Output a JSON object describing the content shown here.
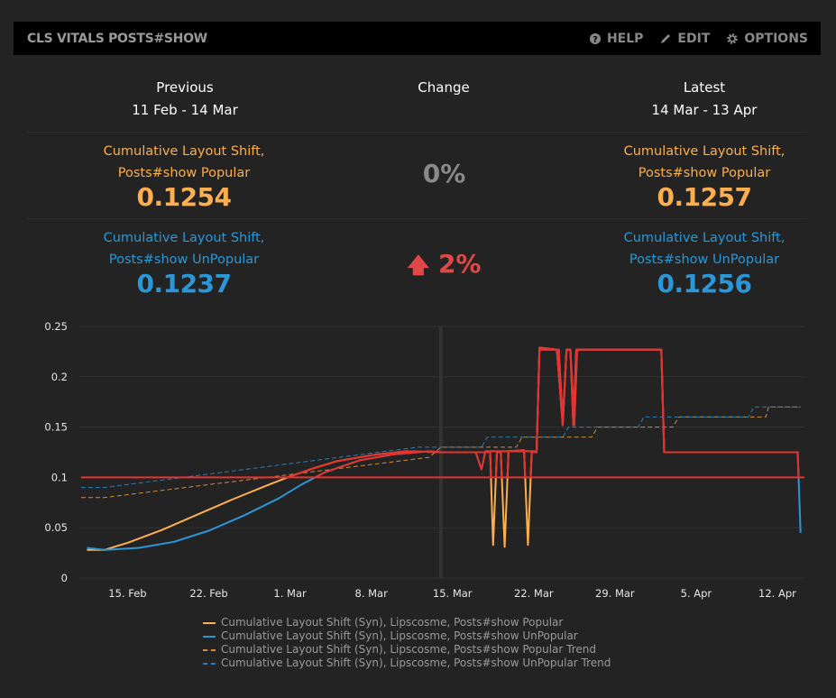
{
  "header": {
    "title": "CLS VITALS POSTS#SHOW",
    "actions": [
      {
        "label": "HELP",
        "icon": "help-circle-icon"
      },
      {
        "label": "EDIT",
        "icon": "pencil-icon"
      },
      {
        "label": "OPTIONS",
        "icon": "gear-icon"
      }
    ]
  },
  "summary": {
    "previous": {
      "heading": "Previous",
      "range": "11 Feb - 14 Mar"
    },
    "change": {
      "heading": "Change"
    },
    "latest": {
      "heading": "Latest",
      "range": "14 Mar - 13 Apr"
    },
    "rows": [
      {
        "label1": "Cumulative Layout Shift,",
        "label2": "Posts#show Popular",
        "previous": "0.1254",
        "latest": "0.1257",
        "change": "0%",
        "change_color": "#8a8a8a",
        "color": "#fdae4d"
      },
      {
        "label1": "Cumulative Layout Shift,",
        "label2": "Posts#show UnPopular",
        "previous": "0.1237",
        "latest": "0.1256",
        "change": "2%",
        "change_direction": "up",
        "change_color": "#e04848",
        "color": "#2a97d8"
      }
    ]
  },
  "chart_data": {
    "type": "line",
    "ylim": [
      0,
      0.25
    ],
    "yticks": [
      "0",
      "0.05",
      "0.1",
      "0.15",
      "0.2",
      "0.25"
    ],
    "xticks": [
      "15. Feb",
      "22. Feb",
      "1. Mar",
      "8. Mar",
      "15. Mar",
      "22. Mar",
      "29. Mar",
      "5. Apr",
      "12. Apr"
    ],
    "xtick_dates": [
      "02-15",
      "02-22",
      "03-01",
      "03-08",
      "03-15",
      "03-22",
      "03-29",
      "04-05",
      "04-12"
    ],
    "xlim": [
      "02-11",
      "04-14 08:00"
    ],
    "period_divider": "03-14",
    "threshold": 0.1,
    "threshold_color": "#e8322f",
    "grid": true,
    "legend_placement": "bottom",
    "series": [
      {
        "name": "Cumulative Layout Shift (Syn), Lipscosme, Posts#show Popular",
        "color": "#fdae4d",
        "dash": false,
        "points": [
          [
            "02-11 12:00",
            0.028
          ],
          [
            "02-13",
            0.028
          ],
          [
            "02-15",
            0.035
          ],
          [
            "02-18",
            0.048
          ],
          [
            "02-21",
            0.063
          ],
          [
            "02-24",
            0.078
          ],
          [
            "02-27",
            0.092
          ],
          [
            "03-01",
            0.101
          ],
          [
            "03-03",
            0.109
          ],
          [
            "03-05",
            0.116
          ],
          [
            "03-08",
            0.122
          ],
          [
            "03-11",
            0.126
          ],
          [
            "03-14",
            0.125
          ],
          [
            "03-18 06:00",
            0.125
          ],
          [
            "03-18 12:00",
            0.033
          ],
          [
            "03-18 20:00",
            0.125
          ],
          [
            "03-19 04:00",
            0.125
          ],
          [
            "03-19 12:00",
            0.031
          ],
          [
            "03-19 20:00",
            0.126
          ],
          [
            "03-21 04:00",
            0.127
          ],
          [
            "03-21 12:00",
            0.033
          ],
          [
            "03-21 20:00",
            0.125
          ],
          [
            "03-22 06:00",
            0.125
          ],
          [
            "03-22 12:00",
            0.229
          ],
          [
            "03-24",
            0.227
          ],
          [
            "03-24 12:00",
            0.152
          ],
          [
            "03-24 20:00",
            0.227
          ],
          [
            "03-25 04:00",
            0.227
          ],
          [
            "03-25 10:00",
            0.152
          ],
          [
            "03-25 16:00",
            0.227
          ],
          [
            "04-02",
            0.227
          ],
          [
            "04-02 06:00",
            0.125
          ],
          [
            "04-13 20:00",
            0.125
          ]
        ]
      },
      {
        "name": "Cumulative Layout Shift (Syn), Lipscosme, Posts#show UnPopular",
        "color": "#2a97d8",
        "dash": false,
        "points": [
          [
            "02-11 12:00",
            0.03
          ],
          [
            "02-13",
            0.028
          ],
          [
            "02-16",
            0.03
          ],
          [
            "02-19",
            0.036
          ],
          [
            "02-22",
            0.047
          ],
          [
            "02-25",
            0.062
          ],
          [
            "02-28",
            0.079
          ],
          [
            "03-02",
            0.093
          ],
          [
            "03-04",
            0.105
          ],
          [
            "03-07",
            0.117
          ],
          [
            "03-10",
            0.123
          ],
          [
            "03-13",
            0.126
          ],
          [
            "03-14",
            0.125
          ],
          [
            "03-17",
            0.125
          ],
          [
            "03-17 12:00",
            0.108
          ],
          [
            "03-17 20:00",
            0.126
          ],
          [
            "03-22 06:00",
            0.126
          ],
          [
            "03-22 12:00",
            0.227
          ],
          [
            "03-24 04:00",
            0.227
          ],
          [
            "03-24 12:00",
            0.155
          ],
          [
            "03-24 20:00",
            0.227
          ],
          [
            "03-25 04:00",
            0.227
          ],
          [
            "03-25 12:00",
            0.152
          ],
          [
            "03-25 18:00",
            0.227
          ],
          [
            "04-02",
            0.227
          ],
          [
            "04-02 06:00",
            0.125
          ],
          [
            "04-13 18:00",
            0.125
          ],
          [
            "04-14",
            0.045
          ]
        ]
      },
      {
        "name": "Cumulative Layout Shift (Syn), Lipscosme, Posts#show Popular Trend",
        "color": "#d08a3a",
        "dash": true,
        "points": [
          [
            "02-11",
            0.08
          ],
          [
            "02-13",
            0.08
          ],
          [
            "03-13",
            0.12
          ],
          [
            "03-14",
            0.13
          ],
          [
            "03-20 12:00",
            0.13
          ],
          [
            "03-21",
            0.14
          ],
          [
            "03-27",
            0.14
          ],
          [
            "03-27 12:00",
            0.15
          ],
          [
            "04-03",
            0.15
          ],
          [
            "04-03 12:00",
            0.16
          ],
          [
            "04-11",
            0.16
          ],
          [
            "04-11 06:00",
            0.17
          ],
          [
            "04-14",
            0.17
          ]
        ]
      },
      {
        "name": "Cumulative Layout Shift (Syn), Lipscosme, Posts#show UnPopular Trend",
        "color": "#2a7fb8",
        "dash": true,
        "points": [
          [
            "02-11",
            0.09
          ],
          [
            "02-13",
            0.09
          ],
          [
            "03-12",
            0.13
          ],
          [
            "03-17 12:00",
            0.13
          ],
          [
            "03-18",
            0.14
          ],
          [
            "03-24 12:00",
            0.14
          ],
          [
            "03-25",
            0.15
          ],
          [
            "03-31",
            0.15
          ],
          [
            "03-31 12:00",
            0.16
          ],
          [
            "04-09 12:00",
            0.16
          ],
          [
            "04-10",
            0.17
          ],
          [
            "04-14",
            0.17
          ]
        ]
      }
    ]
  }
}
